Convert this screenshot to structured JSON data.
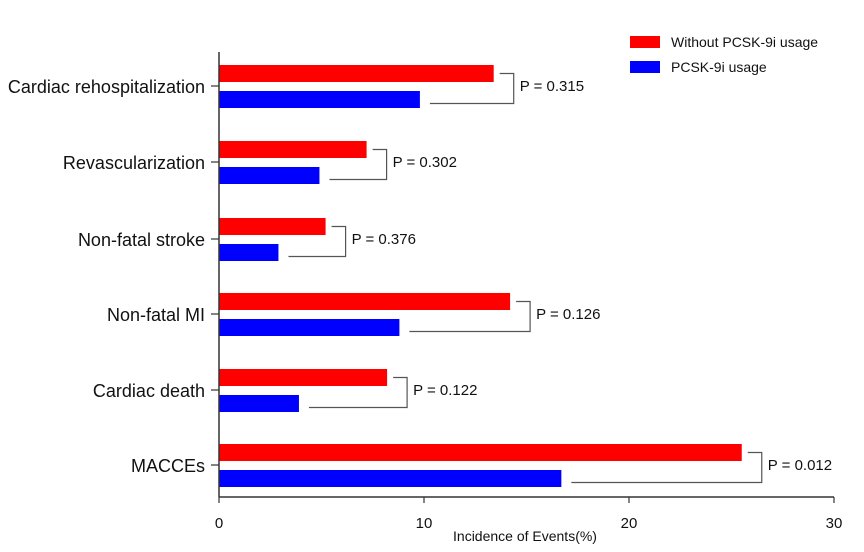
{
  "chart_data": {
    "type": "bar",
    "orientation": "horizontal",
    "title": "",
    "xlabel": "Incidence of Events(%)",
    "ylabel": "",
    "xlim": [
      0,
      30
    ],
    "xticks": [
      0,
      10,
      20,
      30
    ],
    "grid": false,
    "legend_position": "top-right",
    "categories": [
      "Cardiac rehospitalization",
      "Revascularization",
      "Non-fatal stroke",
      "Non-fatal MI",
      "Cardiac death",
      "MACCEs"
    ],
    "series": [
      {
        "name": "Without PCSK-9i usage",
        "color": "#ff0000",
        "values": [
          13.4,
          7.2,
          5.2,
          14.2,
          8.2,
          25.5
        ]
      },
      {
        "name": "PCSK-9i usage",
        "color": "#0000ff",
        "values": [
          9.8,
          4.9,
          2.9,
          8.8,
          3.9,
          16.7
        ]
      }
    ],
    "annotations": [
      "P = 0.315",
      "P = 0.302",
      "P = 0.376",
      "P = 0.126",
      "P = 0.122",
      "P = 0.012"
    ]
  }
}
